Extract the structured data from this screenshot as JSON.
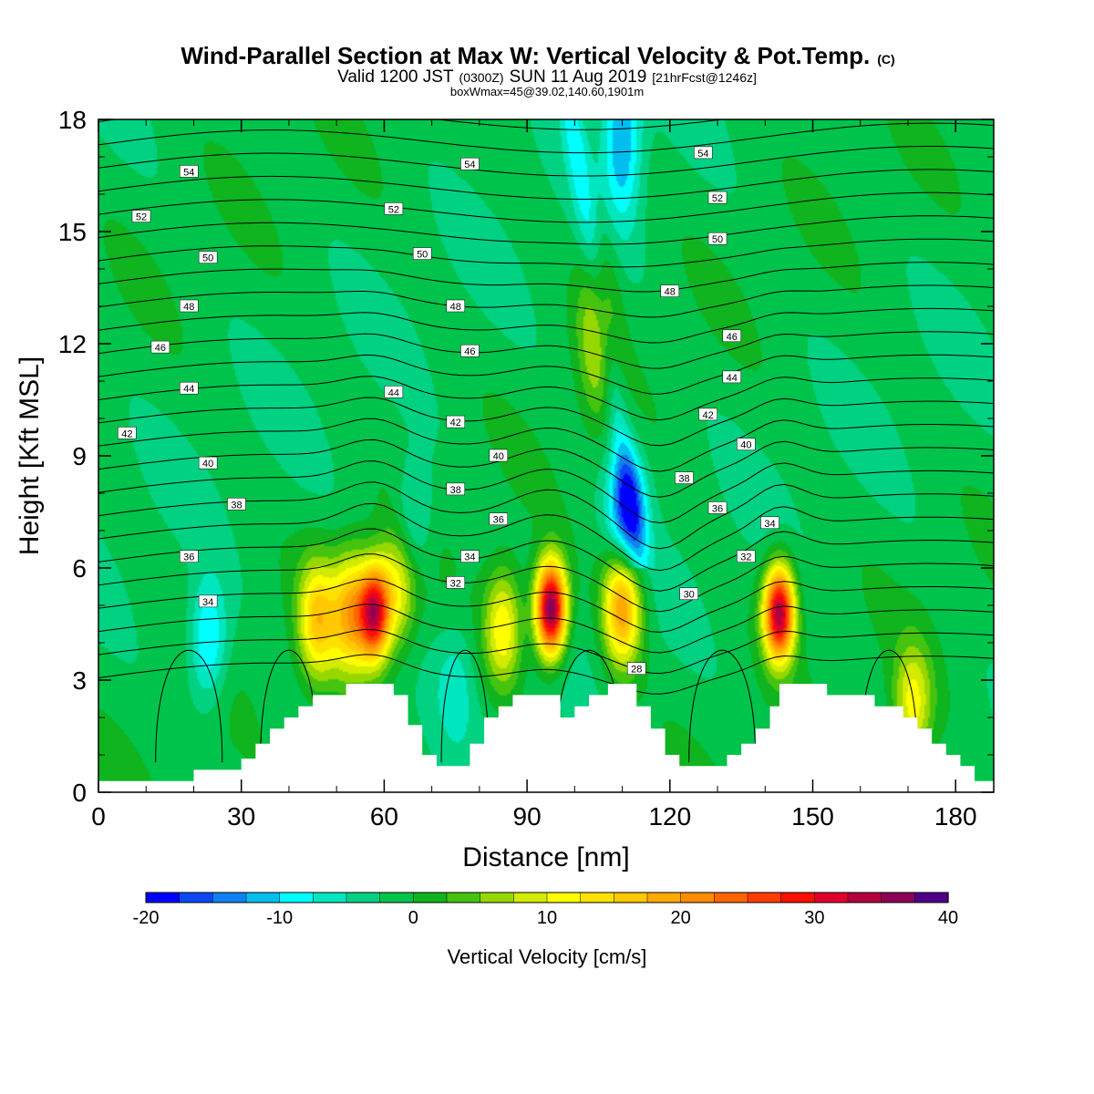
{
  "chart_data": {
    "type": "heatmap",
    "title": "Wind-Parallel Section at Max W: Vertical Velocity & Pot.Temp.",
    "title_mark": "(C)",
    "subtitle_parts": [
      "Valid 1200 JST",
      "(0300Z)",
      "SUN 11 Aug 2019",
      "[21hrFcst@1246z]"
    ],
    "subtitle2": "boxWmax=45@39.02,140.60,1901m",
    "xlabel": "Distance [nm]",
    "ylabel": "Height [Kft MSL]",
    "xlim": [
      0,
      188
    ],
    "ylim": [
      0,
      18
    ],
    "x_ticks": [
      "0",
      "30",
      "60",
      "90",
      "120",
      "150",
      "180"
    ],
    "y_ticks": [
      "0",
      "3",
      "6",
      "9",
      "12",
      "15",
      "18"
    ],
    "colorbar": {
      "label": "Vertical Velocity [cm/s]",
      "range": [
        -20,
        40
      ],
      "tick_labels": [
        "-20",
        "-10",
        "0",
        "10",
        "20",
        "30",
        "40"
      ],
      "colors": [
        "#0000ff",
        "#0a48f5",
        "#0f82f0",
        "#00bef0",
        "#00ffff",
        "#00e6be",
        "#00d282",
        "#00c34b",
        "#0fb41e",
        "#46c30f",
        "#96d700",
        "#d2eb00",
        "#ffff00",
        "#ffe100",
        "#ffc800",
        "#ffaa00",
        "#ff8c00",
        "#ff6400",
        "#ff3c00",
        "#ff0f00",
        "#e1002d",
        "#b4003c",
        "#8c0055",
        "#500087"
      ]
    },
    "w_features": [
      {
        "x": 58,
        "y": 4.8,
        "peak": 31
      },
      {
        "x": 95,
        "y": 4.9,
        "peak": 40
      },
      {
        "x": 110,
        "y": 5.0,
        "peak": 22
      },
      {
        "x": 143,
        "y": 4.8,
        "peak": 36
      },
      {
        "x": 46,
        "y": 4.6,
        "peak": 16
      },
      {
        "x": 53,
        "y": 4.8,
        "peak": 18
      },
      {
        "x": 85,
        "y": 4.4,
        "peak": 14
      },
      {
        "x": 63,
        "y": 5.5,
        "peak": 12
      },
      {
        "x": 171,
        "y": 2.3,
        "peak": 12
      },
      {
        "x": 105,
        "y": 12.5,
        "peak": 10
      },
      {
        "x": 111,
        "y": 7.5,
        "peak": -15
      },
      {
        "x": 23,
        "y": 4.0,
        "peak": -10
      },
      {
        "x": 66,
        "y": 7.2,
        "peak": -7
      },
      {
        "x": 110,
        "y": 17.6,
        "peak": -11
      },
      {
        "x": 75,
        "y": 3.0,
        "peak": -4
      }
    ],
    "terrain_kft": [
      [
        0,
        0.3
      ],
      [
        20,
        0.3
      ],
      [
        20,
        0.6
      ],
      [
        30,
        0.6
      ],
      [
        30,
        0.9
      ],
      [
        33,
        0.9
      ],
      [
        33,
        1.3
      ],
      [
        36,
        1.3
      ],
      [
        36,
        1.7
      ],
      [
        39,
        1.7
      ],
      [
        39,
        2.0
      ],
      [
        42,
        2.0
      ],
      [
        42,
        2.3
      ],
      [
        45,
        2.3
      ],
      [
        45,
        2.6
      ],
      [
        52,
        2.6
      ],
      [
        52,
        2.9
      ],
      [
        62,
        2.9
      ],
      [
        62,
        2.6
      ],
      [
        65,
        2.6
      ],
      [
        65,
        1.8
      ],
      [
        68,
        1.8
      ],
      [
        68,
        1.0
      ],
      [
        71,
        1.0
      ],
      [
        71,
        0.7
      ],
      [
        78,
        0.7
      ],
      [
        78,
        1.3
      ],
      [
        81,
        1.3
      ],
      [
        81,
        2.0
      ],
      [
        84,
        2.0
      ],
      [
        84,
        2.3
      ],
      [
        87,
        2.3
      ],
      [
        87,
        2.6
      ],
      [
        97,
        2.6
      ],
      [
        97,
        2.0
      ],
      [
        100,
        2.0
      ],
      [
        100,
        2.3
      ],
      [
        103,
        2.3
      ],
      [
        103,
        2.6
      ],
      [
        107,
        2.6
      ],
      [
        107,
        2.9
      ],
      [
        113,
        2.9
      ],
      [
        113,
        2.3
      ],
      [
        116,
        2.3
      ],
      [
        116,
        1.7
      ],
      [
        119,
        1.7
      ],
      [
        119,
        1.0
      ],
      [
        122,
        1.0
      ],
      [
        122,
        0.7
      ],
      [
        132,
        0.7
      ],
      [
        132,
        1.0
      ],
      [
        135,
        1.0
      ],
      [
        135,
        1.3
      ],
      [
        138,
        1.3
      ],
      [
        138,
        1.7
      ],
      [
        141,
        1.7
      ],
      [
        141,
        2.3
      ],
      [
        143,
        2.3
      ],
      [
        143,
        2.9
      ],
      [
        153,
        2.9
      ],
      [
        153,
        2.6
      ],
      [
        163,
        2.6
      ],
      [
        163,
        2.3
      ],
      [
        169,
        2.3
      ],
      [
        169,
        2.0
      ],
      [
        172,
        2.0
      ],
      [
        172,
        1.7
      ],
      [
        175,
        1.7
      ],
      [
        175,
        1.3
      ],
      [
        178,
        1.3
      ],
      [
        178,
        1.0
      ],
      [
        181,
        1.0
      ],
      [
        181,
        0.7
      ],
      [
        184,
        0.7
      ],
      [
        184,
        0.3
      ],
      [
        188,
        0.3
      ]
    ],
    "isentropes": {
      "levels": [
        28,
        29,
        30,
        31,
        32,
        33,
        34,
        35,
        36,
        37,
        38,
        39,
        40,
        41,
        42,
        43,
        44,
        45,
        46,
        47,
        48,
        49,
        50,
        51,
        52,
        53,
        54,
        55
      ],
      "labels": [
        {
          "text": "54",
          "x": 19,
          "y": 16.6
        },
        {
          "text": "54",
          "x": 78,
          "y": 16.8
        },
        {
          "text": "54",
          "x": 127,
          "y": 17.1
        },
        {
          "text": "52",
          "x": 9,
          "y": 15.4
        },
        {
          "text": "52",
          "x": 62,
          "y": 15.6
        },
        {
          "text": "52",
          "x": 130,
          "y": 15.9
        },
        {
          "text": "50",
          "x": 23,
          "y": 14.3
        },
        {
          "text": "50",
          "x": 68,
          "y": 14.4
        },
        {
          "text": "50",
          "x": 130,
          "y": 14.8
        },
        {
          "text": "48",
          "x": 19,
          "y": 13.0
        },
        {
          "text": "48",
          "x": 75,
          "y": 13.0
        },
        {
          "text": "48",
          "x": 120,
          "y": 13.4
        },
        {
          "text": "46",
          "x": 13,
          "y": 11.9
        },
        {
          "text": "46",
          "x": 78,
          "y": 11.8
        },
        {
          "text": "46",
          "x": 133,
          "y": 12.2
        },
        {
          "text": "44",
          "x": 19,
          "y": 10.8
        },
        {
          "text": "44",
          "x": 62,
          "y": 10.7
        },
        {
          "text": "44",
          "x": 133,
          "y": 11.1
        },
        {
          "text": "42",
          "x": 6,
          "y": 9.6
        },
        {
          "text": "42",
          "x": 75,
          "y": 9.9
        },
        {
          "text": "42",
          "x": 128,
          "y": 10.1
        },
        {
          "text": "40",
          "x": 23,
          "y": 8.8
        },
        {
          "text": "40",
          "x": 84,
          "y": 9.0
        },
        {
          "text": "40",
          "x": 136,
          "y": 9.3
        },
        {
          "text": "38",
          "x": 29,
          "y": 7.7
        },
        {
          "text": "38",
          "x": 75,
          "y": 8.1
        },
        {
          "text": "38",
          "x": 123,
          "y": 8.4
        },
        {
          "text": "36",
          "x": 19,
          "y": 6.3
        },
        {
          "text": "36",
          "x": 84,
          "y": 7.3
        },
        {
          "text": "36",
          "x": 130,
          "y": 7.6
        },
        {
          "text": "34",
          "x": 23,
          "y": 5.1
        },
        {
          "text": "34",
          "x": 78,
          "y": 6.3
        },
        {
          "text": "34",
          "x": 141,
          "y": 7.2
        },
        {
          "text": "32",
          "x": 75,
          "y": 5.6
        },
        {
          "text": "32",
          "x": 136,
          "y": 6.3
        },
        {
          "text": "30",
          "x": 124,
          "y": 5.3
        },
        {
          "text": "28",
          "x": 113,
          "y": 3.3
        }
      ]
    }
  }
}
